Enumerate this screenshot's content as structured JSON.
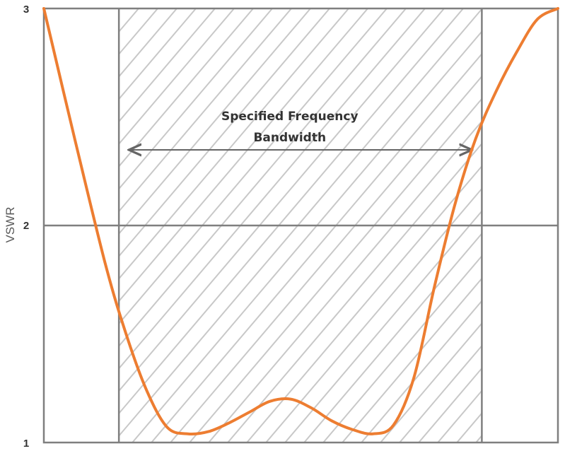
{
  "chart_data": {
    "type": "line",
    "title": "",
    "xlabel": "",
    "ylabel": "VSWR",
    "ylim": [
      1,
      3
    ],
    "yticks": [
      "1",
      "2",
      "3"
    ],
    "grid": true,
    "legend": "none",
    "annotation": {
      "line1": "Specified Frequency",
      "line2": "Bandwidth"
    },
    "series": [
      {
        "color": "#ED7D31",
        "x": [
          0.0,
          0.06,
          0.12,
          0.16,
          0.2,
          0.24,
          0.28,
          0.32,
          0.36,
          0.4,
          0.44,
          0.48,
          0.52,
          0.56,
          0.6,
          0.64,
          0.68,
          0.72,
          0.76,
          0.8,
          0.84,
          0.88,
          0.92,
          0.96,
          1.0
        ],
        "values": [
          3.0,
          2.4,
          1.82,
          1.5,
          1.24,
          1.07,
          1.04,
          1.05,
          1.09,
          1.14,
          1.19,
          1.2,
          1.16,
          1.1,
          1.06,
          1.04,
          1.08,
          1.3,
          1.72,
          2.1,
          2.4,
          2.62,
          2.8,
          2.95,
          3.0
        ]
      }
    ],
    "band": {
      "x_start": 0.146,
      "x_end": 0.852,
      "fill": "hatched",
      "line_color": "#7F7F7F",
      "hatch_color": "#C8C8C8"
    }
  }
}
